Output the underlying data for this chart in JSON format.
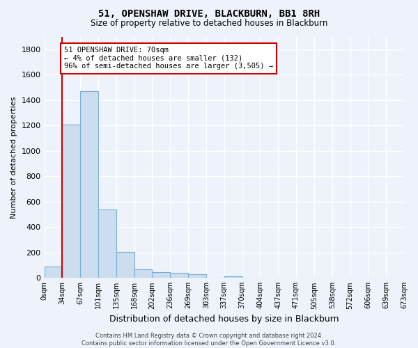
{
  "title": "51, OPENSHAW DRIVE, BLACKBURN, BB1 8RH",
  "subtitle": "Size of property relative to detached houses in Blackburn",
  "xlabel": "Distribution of detached houses by size in Blackburn",
  "ylabel": "Number of detached properties",
  "bar_color": "#ccddf0",
  "bar_edge_color": "#7aadd4",
  "background_color": "#eef2fa",
  "grid_color": "#ffffff",
  "bin_labels": [
    "0sqm",
    "34sqm",
    "67sqm",
    "101sqm",
    "135sqm",
    "168sqm",
    "202sqm",
    "236sqm",
    "269sqm",
    "303sqm",
    "337sqm",
    "370sqm",
    "404sqm",
    "437sqm",
    "471sqm",
    "505sqm",
    "538sqm",
    "572sqm",
    "606sqm",
    "639sqm",
    "673sqm"
  ],
  "bar_values": [
    90,
    1205,
    1470,
    540,
    205,
    65,
    48,
    38,
    30,
    0,
    15,
    0,
    0,
    0,
    0,
    0,
    0,
    0,
    0,
    0
  ],
  "ylim": [
    0,
    1900
  ],
  "yticks": [
    0,
    200,
    400,
    600,
    800,
    1000,
    1200,
    1400,
    1600,
    1800
  ],
  "property_line_x": 1.0,
  "annotation_text": "51 OPENSHAW DRIVE: 70sqm\n← 4% of detached houses are smaller (132)\n96% of semi-detached houses are larger (3,505) →",
  "annotation_box_color": "#ffffff",
  "annotation_box_edge_color": "#cc0000",
  "red_line_color": "#cc0000",
  "footer_text": "Contains HM Land Registry data © Crown copyright and database right 2024.\nContains public sector information licensed under the Open Government Licence v3.0."
}
